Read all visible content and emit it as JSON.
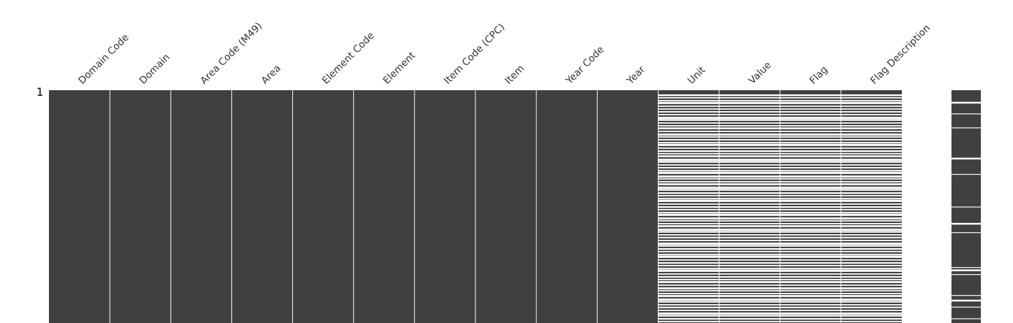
{
  "chart_data": {
    "type": "heatmap",
    "title": "",
    "xlabel": "",
    "ylabel": "",
    "row_tick_label": "1",
    "present_color": "#404040",
    "missing_color": "#ffffff",
    "columns": [
      {
        "name": "Domain Code",
        "missing": []
      },
      {
        "name": "Domain",
        "missing": []
      },
      {
        "name": "Area Code (M49)",
        "missing": []
      },
      {
        "name": "Area",
        "missing": []
      },
      {
        "name": "Element Code",
        "missing": []
      },
      {
        "name": "Element",
        "missing": []
      },
      {
        "name": "Item Code (CPC)",
        "missing": []
      },
      {
        "name": "Item",
        "missing": []
      },
      {
        "name": "Year Code",
        "missing": []
      },
      {
        "name": "Year",
        "missing": []
      },
      {
        "name": "Unit",
        "missing": "pattern"
      },
      {
        "name": "Value",
        "missing": "pattern"
      },
      {
        "name": "Flag",
        "missing": "pattern"
      },
      {
        "name": "Flag Description",
        "missing": "pattern"
      }
    ],
    "missing_pattern": [
      0.02,
      0.05,
      0.09,
      0.12,
      0.16,
      0.19,
      0.21,
      0.23,
      0.26,
      0.28,
      0.3,
      0.33,
      0.35,
      0.37,
      0.4,
      0.42,
      0.44,
      0.47,
      0.5,
      0.53,
      0.55,
      0.58,
      0.6,
      0.63,
      0.66,
      0.68,
      0.71,
      0.74,
      0.77,
      0.8,
      0.82,
      0.85,
      0.88,
      0.9,
      0.93,
      0.96,
      0.98
    ],
    "sparkline": {
      "full_completeness_rows": [
        0.05,
        0.1,
        0.16,
        0.29,
        0.36,
        0.5,
        0.57,
        0.61,
        0.76,
        0.77,
        0.79,
        0.88,
        0.9,
        0.93,
        0.98
      ]
    }
  }
}
